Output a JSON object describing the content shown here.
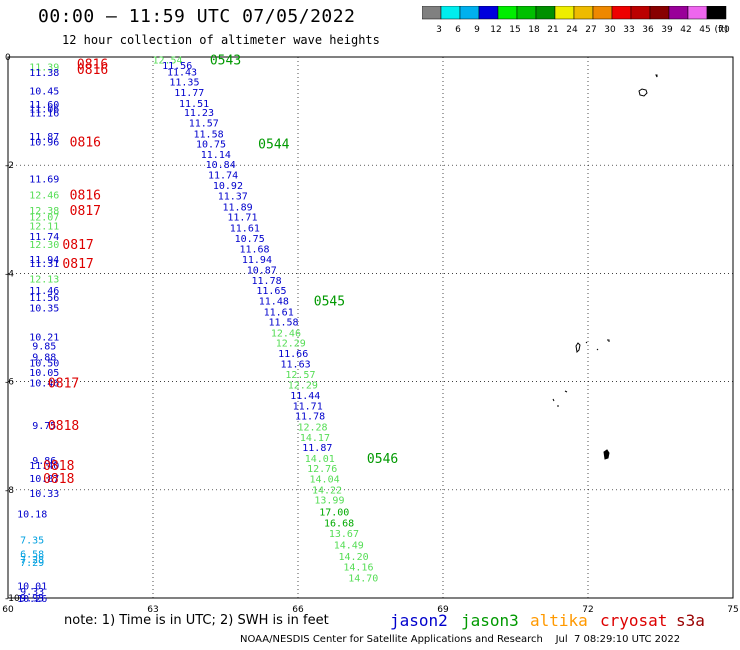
{
  "header": {
    "title": "00:00 – 11:59 UTC 07/05/2022",
    "subtitle": "12 hour collection of altimeter wave heights"
  },
  "colorbar": {
    "labels": [
      "3",
      "6",
      "9",
      "12",
      "15",
      "18",
      "21",
      "24",
      "27",
      "30",
      "33",
      "36",
      "39",
      "42",
      "45",
      "70"
    ],
    "unit": "(ft)",
    "colors": [
      "#808080",
      "#00eeee",
      "#00b0ee",
      "#0000dd",
      "#00ee00",
      "#00c000",
      "#009000",
      "#eeee00",
      "#eebb00",
      "#ee8800",
      "#ee0000",
      "#bb0000",
      "#880000",
      "#990099",
      "#ee66ee",
      "#000000"
    ]
  },
  "note": "note:  1) Time is in UTC;  2) SWH is in feet",
  "satellites": [
    {
      "name": "jason2",
      "color": "#0000cc"
    },
    {
      "name": "jason3",
      "color": "#009900"
    },
    {
      "name": "altika",
      "color": "#ff9900"
    },
    {
      "name": "cryosat",
      "color": "#dd0000"
    },
    {
      "name": "s3a",
      "color": "#990000"
    }
  ],
  "credit": "NOAA/NESDIS Center for Satellite Applications and Research    Jul  7 08:29:10 UTC 2022",
  "chart_data": {
    "type": "scatter",
    "xlim": [
      60,
      75
    ],
    "ylim": [
      0,
      -10
    ],
    "x_ticks": [
      "60",
      "63",
      "66",
      "69",
      "72",
      "75"
    ],
    "y_ticks": [
      "0",
      "-2",
      "-4",
      "-6",
      "-8",
      "-10"
    ],
    "grid": true,
    "points": [
      {
        "x": 60.75,
        "y": -0.18,
        "v": "11.39",
        "c": "#55dd55"
      },
      {
        "x": 60.75,
        "y": -0.28,
        "v": "11.38",
        "c": "#0000cc"
      },
      {
        "x": 60.75,
        "y": -0.62,
        "v": "10.45",
        "c": "#0000cc"
      },
      {
        "x": 60.75,
        "y": -0.87,
        "v": "11.60",
        "c": "#0000cc"
      },
      {
        "x": 60.75,
        "y": -0.95,
        "v": "11.06",
        "c": "#0000cc"
      },
      {
        "x": 60.75,
        "y": -1.03,
        "v": "11.16",
        "c": "#0000cc"
      },
      {
        "x": 60.75,
        "y": -1.46,
        "v": "11.87",
        "c": "#0000cc"
      },
      {
        "x": 60.75,
        "y": -1.56,
        "v": "10.96",
        "c": "#0000cc"
      },
      {
        "x": 60.75,
        "y": -2.25,
        "v": "11.69",
        "c": "#0000cc"
      },
      {
        "x": 60.75,
        "y": -2.54,
        "v": "12.46",
        "c": "#55dd55"
      },
      {
        "x": 60.75,
        "y": -2.83,
        "v": "12.38",
        "c": "#55dd55"
      },
      {
        "x": 60.75,
        "y": -2.95,
        "v": "12.07",
        "c": "#55dd55"
      },
      {
        "x": 60.75,
        "y": -3.11,
        "v": "12.11",
        "c": "#55dd55"
      },
      {
        "x": 60.75,
        "y": -3.31,
        "v": "11.74",
        "c": "#0000cc"
      },
      {
        "x": 60.75,
        "y": -3.46,
        "v": "12.30",
        "c": "#55dd55"
      },
      {
        "x": 60.75,
        "y": -3.73,
        "v": "11.94",
        "c": "#0000cc"
      },
      {
        "x": 60.75,
        "y": -3.81,
        "v": "11.31",
        "c": "#0000cc"
      },
      {
        "x": 60.75,
        "y": -4.09,
        "v": "12.13",
        "c": "#55dd55"
      },
      {
        "x": 60.75,
        "y": -4.31,
        "v": "11.46",
        "c": "#0000cc"
      },
      {
        "x": 60.75,
        "y": -4.44,
        "v": "11.56",
        "c": "#0000cc"
      },
      {
        "x": 60.75,
        "y": -4.63,
        "v": "10.35",
        "c": "#0000cc"
      },
      {
        "x": 60.75,
        "y": -5.17,
        "v": "10.21",
        "c": "#0000cc"
      },
      {
        "x": 60.75,
        "y": -5.33,
        "v": "9.85",
        "c": "#0000cc"
      },
      {
        "x": 60.75,
        "y": -5.54,
        "v": "9.88",
        "c": "#0000cc"
      },
      {
        "x": 60.75,
        "y": -5.65,
        "v": "10.50",
        "c": "#0000cc"
      },
      {
        "x": 60.75,
        "y": -5.82,
        "v": "10.05",
        "c": "#0000cc"
      },
      {
        "x": 60.75,
        "y": -6.02,
        "v": "10.46",
        "c": "#0000cc"
      },
      {
        "x": 60.75,
        "y": -6.8,
        "v": "9.75",
        "c": "#0000cc"
      },
      {
        "x": 60.75,
        "y": -7.45,
        "v": "9.86",
        "c": "#0000cc"
      },
      {
        "x": 60.75,
        "y": -7.54,
        "v": "11.40",
        "c": "#0000cc"
      },
      {
        "x": 60.75,
        "y": -7.78,
        "v": "10.87",
        "c": "#0000cc"
      },
      {
        "x": 60.75,
        "y": -8.06,
        "v": "10.33",
        "c": "#0000cc"
      },
      {
        "x": 60.5,
        "y": -8.44,
        "v": "10.18",
        "c": "#0000cc"
      },
      {
        "x": 60.5,
        "y": -8.92,
        "v": "7.35",
        "c": "#00a0e0"
      },
      {
        "x": 60.5,
        "y": -9.18,
        "v": "6.58",
        "c": "#00a0e0"
      },
      {
        "x": 60.5,
        "y": -9.28,
        "v": "7.28",
        "c": "#00a0e0"
      },
      {
        "x": 60.5,
        "y": -9.33,
        "v": "7.29",
        "c": "#00a0e0"
      },
      {
        "x": 60.5,
        "y": -9.77,
        "v": "10.01",
        "c": "#0000cc"
      },
      {
        "x": 60.5,
        "y": -9.87,
        "v": "9.33",
        "c": "#0000cc"
      },
      {
        "x": 60.5,
        "y": -9.99,
        "v": "9.93",
        "c": "#0000cc"
      },
      {
        "x": 60.5,
        "y": -10.0,
        "v": "10.26",
        "c": "#0000cc"
      },
      {
        "x": 63.3,
        "y": -0.05,
        "v": "12.54",
        "c": "#55dd55"
      },
      {
        "x": 63.5,
        "y": -0.15,
        "v": "11.56",
        "c": "#0000cc"
      },
      {
        "x": 63.6,
        "y": -0.27,
        "v": "11.43",
        "c": "#0000cc"
      },
      {
        "x": 63.65,
        "y": -0.45,
        "v": "11.35",
        "c": "#0000cc"
      },
      {
        "x": 63.75,
        "y": -0.65,
        "v": "11.77",
        "c": "#0000cc"
      },
      {
        "x": 63.85,
        "y": -0.85,
        "v": "11.51",
        "c": "#0000cc"
      },
      {
        "x": 63.95,
        "y": -1.02,
        "v": "11.23",
        "c": "#0000cc"
      },
      {
        "x": 64.05,
        "y": -1.21,
        "v": "11.57",
        "c": "#0000cc"
      },
      {
        "x": 64.15,
        "y": -1.41,
        "v": "11.58",
        "c": "#0000cc"
      },
      {
        "x": 64.2,
        "y": -1.6,
        "v": "10.75",
        "c": "#0000cc"
      },
      {
        "x": 64.3,
        "y": -1.79,
        "v": "11.14",
        "c": "#0000cc"
      },
      {
        "x": 64.4,
        "y": -1.98,
        "v": "10.84",
        "c": "#0000cc"
      },
      {
        "x": 64.45,
        "y": -2.17,
        "v": "11.74",
        "c": "#0000cc"
      },
      {
        "x": 64.55,
        "y": -2.37,
        "v": "10.92",
        "c": "#0000cc"
      },
      {
        "x": 64.65,
        "y": -2.56,
        "v": "11.37",
        "c": "#0000cc"
      },
      {
        "x": 64.75,
        "y": -2.76,
        "v": "11.89",
        "c": "#0000cc"
      },
      {
        "x": 64.85,
        "y": -2.95,
        "v": "11.71",
        "c": "#0000cc"
      },
      {
        "x": 64.9,
        "y": -3.15,
        "v": "11.61",
        "c": "#0000cc"
      },
      {
        "x": 65.0,
        "y": -3.35,
        "v": "10.75",
        "c": "#0000cc"
      },
      {
        "x": 65.1,
        "y": -3.54,
        "v": "11.68",
        "c": "#0000cc"
      },
      {
        "x": 65.15,
        "y": -3.73,
        "v": "11.94",
        "c": "#0000cc"
      },
      {
        "x": 65.25,
        "y": -3.93,
        "v": "10.87",
        "c": "#0000cc"
      },
      {
        "x": 65.35,
        "y": -4.12,
        "v": "11.78",
        "c": "#0000cc"
      },
      {
        "x": 65.45,
        "y": -4.31,
        "v": "11.65",
        "c": "#0000cc"
      },
      {
        "x": 65.5,
        "y": -4.5,
        "v": "11.48",
        "c": "#0000cc"
      },
      {
        "x": 65.6,
        "y": -4.7,
        "v": "11.61",
        "c": "#0000cc"
      },
      {
        "x": 65.7,
        "y": -4.89,
        "v": "11.58",
        "c": "#0000cc"
      },
      {
        "x": 65.75,
        "y": -5.09,
        "v": "12.46",
        "c": "#55dd55"
      },
      {
        "x": 65.85,
        "y": -5.28,
        "v": "12.29",
        "c": "#55dd55"
      },
      {
        "x": 65.9,
        "y": -5.47,
        "v": "11.66",
        "c": "#0000cc"
      },
      {
        "x": 65.95,
        "y": -5.67,
        "v": "11.63",
        "c": "#0000cc"
      },
      {
        "x": 66.05,
        "y": -5.86,
        "v": "12.57",
        "c": "#55dd55"
      },
      {
        "x": 66.1,
        "y": -6.05,
        "v": "12.29",
        "c": "#55dd55"
      },
      {
        "x": 66.15,
        "y": -6.25,
        "v": "11.44",
        "c": "#0000cc"
      },
      {
        "x": 66.2,
        "y": -6.44,
        "v": "11.71",
        "c": "#0000cc"
      },
      {
        "x": 66.25,
        "y": -6.63,
        "v": "11.78",
        "c": "#0000cc"
      },
      {
        "x": 66.3,
        "y": -6.83,
        "v": "12.28",
        "c": "#55dd55"
      },
      {
        "x": 66.35,
        "y": -7.02,
        "v": "14.17",
        "c": "#55dd55"
      },
      {
        "x": 66.4,
        "y": -7.21,
        "v": "11.87",
        "c": "#0000cc"
      },
      {
        "x": 66.45,
        "y": -7.41,
        "v": "14.01",
        "c": "#55dd55"
      },
      {
        "x": 66.5,
        "y": -7.6,
        "v": "12.76",
        "c": "#55dd55"
      },
      {
        "x": 66.55,
        "y": -7.79,
        "v": "14.04",
        "c": "#55dd55"
      },
      {
        "x": 66.6,
        "y": -7.99,
        "v": "14.22",
        "c": "#55dd55"
      },
      {
        "x": 66.65,
        "y": -8.18,
        "v": "13.99",
        "c": "#55dd55"
      },
      {
        "x": 66.75,
        "y": -8.4,
        "v": "17.00",
        "c": "#00aa00"
      },
      {
        "x": 66.85,
        "y": -8.6,
        "v": "16.68",
        "c": "#00aa00"
      },
      {
        "x": 66.95,
        "y": -8.8,
        "v": "13.67",
        "c": "#55dd55"
      },
      {
        "x": 67.05,
        "y": -9.01,
        "v": "14.49",
        "c": "#55dd55"
      },
      {
        "x": 67.15,
        "y": -9.22,
        "v": "14.20",
        "c": "#55dd55"
      },
      {
        "x": 67.25,
        "y": -9.42,
        "v": "14.16",
        "c": "#55dd55"
      },
      {
        "x": 67.35,
        "y": -9.62,
        "v": "14.70",
        "c": "#55dd55"
      }
    ],
    "cycle_labels": [
      {
        "x": 61.75,
        "y": -0.12,
        "v": "0816",
        "c": "#dd0000"
      },
      {
        "x": 61.75,
        "y": -0.22,
        "v": "0816",
        "c": "#dd0000"
      },
      {
        "x": 61.6,
        "y": -1.56,
        "v": "0816",
        "c": "#dd0000"
      },
      {
        "x": 61.6,
        "y": -2.54,
        "v": "0816",
        "c": "#dd0000"
      },
      {
        "x": 61.6,
        "y": -2.83,
        "v": "0817",
        "c": "#dd0000"
      },
      {
        "x": 61.45,
        "y": -3.46,
        "v": "0817",
        "c": "#dd0000"
      },
      {
        "x": 61.45,
        "y": -3.81,
        "v": "0817",
        "c": "#dd0000"
      },
      {
        "x": 61.15,
        "y": -6.02,
        "v": "0817",
        "c": "#dd0000"
      },
      {
        "x": 61.15,
        "y": -6.8,
        "v": "0818",
        "c": "#dd0000"
      },
      {
        "x": 61.05,
        "y": -7.54,
        "v": "0818",
        "c": "#dd0000"
      },
      {
        "x": 61.05,
        "y": -7.78,
        "v": "0818",
        "c": "#dd0000"
      },
      {
        "x": 64.5,
        "y": -0.05,
        "v": "0543",
        "c": "#009900"
      },
      {
        "x": 65.5,
        "y": -1.6,
        "v": "0544",
        "c": "#009900"
      },
      {
        "x": 66.65,
        "y": -4.5,
        "v": "0545",
        "c": "#009900"
      },
      {
        "x": 67.75,
        "y": -7.41,
        "v": "0546",
        "c": "#009900"
      }
    ]
  }
}
